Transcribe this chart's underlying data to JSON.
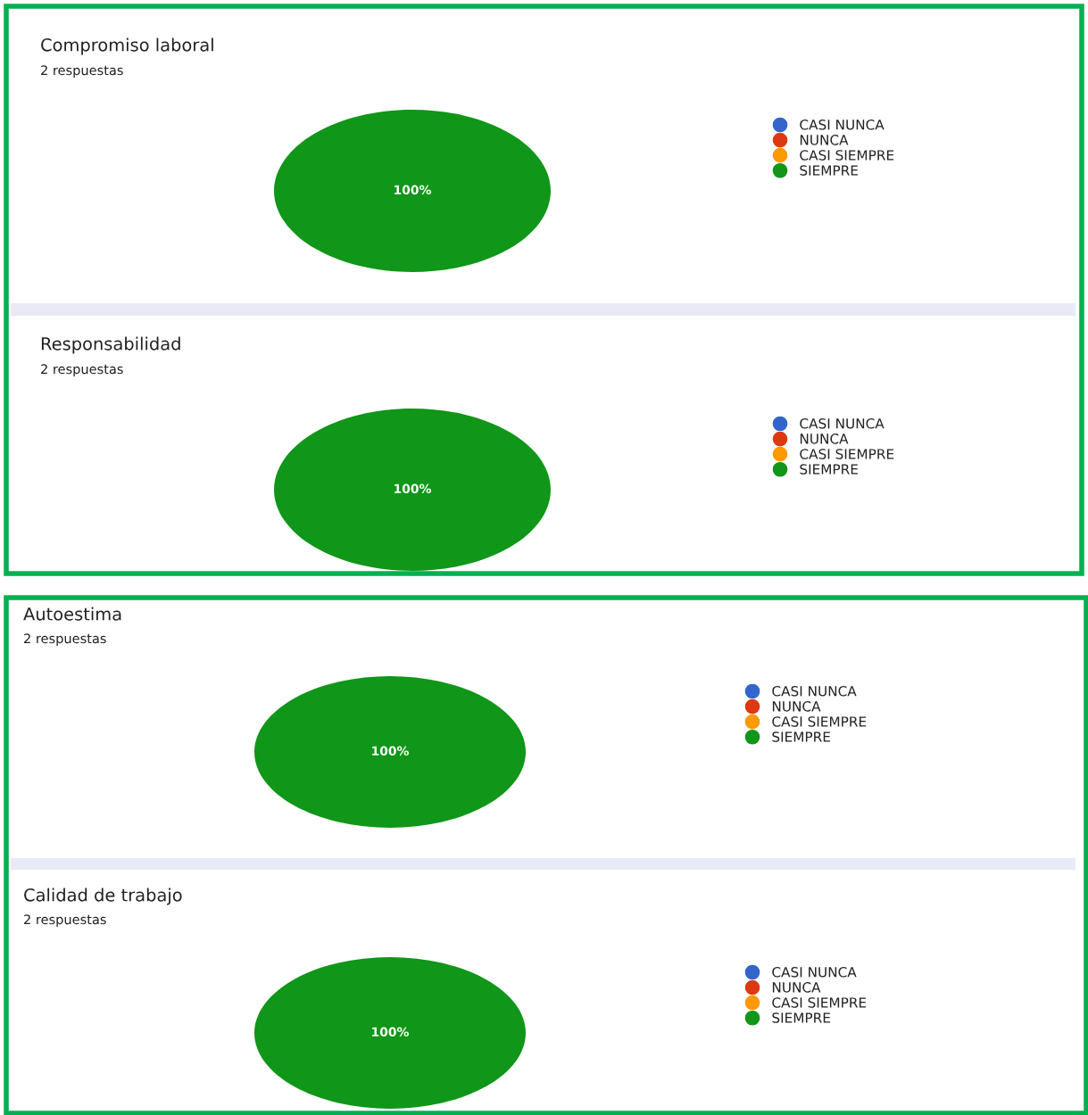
{
  "chart_data": [
    {
      "type": "pie",
      "title": "Compromiso laboral",
      "subtitle": "2 respuestas",
      "categories": [
        "CASI NUNCA",
        "NUNCA",
        "CASI SIEMPRE",
        "SIEMPRE"
      ],
      "values": [
        0,
        0,
        0,
        100
      ],
      "colors": [
        "#3366cc",
        "#dc3912",
        "#ff9900",
        "#109618"
      ],
      "value_labels": [
        null,
        null,
        null,
        "100%"
      ],
      "legend": "right"
    },
    {
      "type": "pie",
      "title": "Responsabilidad",
      "subtitle": "2 respuestas",
      "categories": [
        "CASI NUNCA",
        "NUNCA",
        "CASI SIEMPRE",
        "SIEMPRE"
      ],
      "values": [
        0,
        0,
        0,
        100
      ],
      "colors": [
        "#3366cc",
        "#dc3912",
        "#ff9900",
        "#109618"
      ],
      "value_labels": [
        null,
        null,
        null,
        "100%"
      ],
      "legend": "right"
    },
    {
      "type": "pie",
      "title": "Autoestima",
      "subtitle": "2 respuestas",
      "categories": [
        "CASI NUNCA",
        "NUNCA",
        "CASI SIEMPRE",
        "SIEMPRE"
      ],
      "values": [
        0,
        0,
        0,
        100
      ],
      "colors": [
        "#3366cc",
        "#dc3912",
        "#ff9900",
        "#109618"
      ],
      "value_labels": [
        null,
        null,
        null,
        "100%"
      ],
      "legend": "right"
    },
    {
      "type": "pie",
      "title": "Calidad de trabajo",
      "subtitle": "2 respuestas",
      "categories": [
        "CASI NUNCA",
        "NUNCA",
        "CASI SIEMPRE",
        "SIEMPRE"
      ],
      "values": [
        0,
        0,
        0,
        100
      ],
      "colors": [
        "#3366cc",
        "#dc3912",
        "#ff9900",
        "#109618"
      ],
      "value_labels": [
        null,
        null,
        null,
        "100%"
      ],
      "legend": "right"
    }
  ]
}
